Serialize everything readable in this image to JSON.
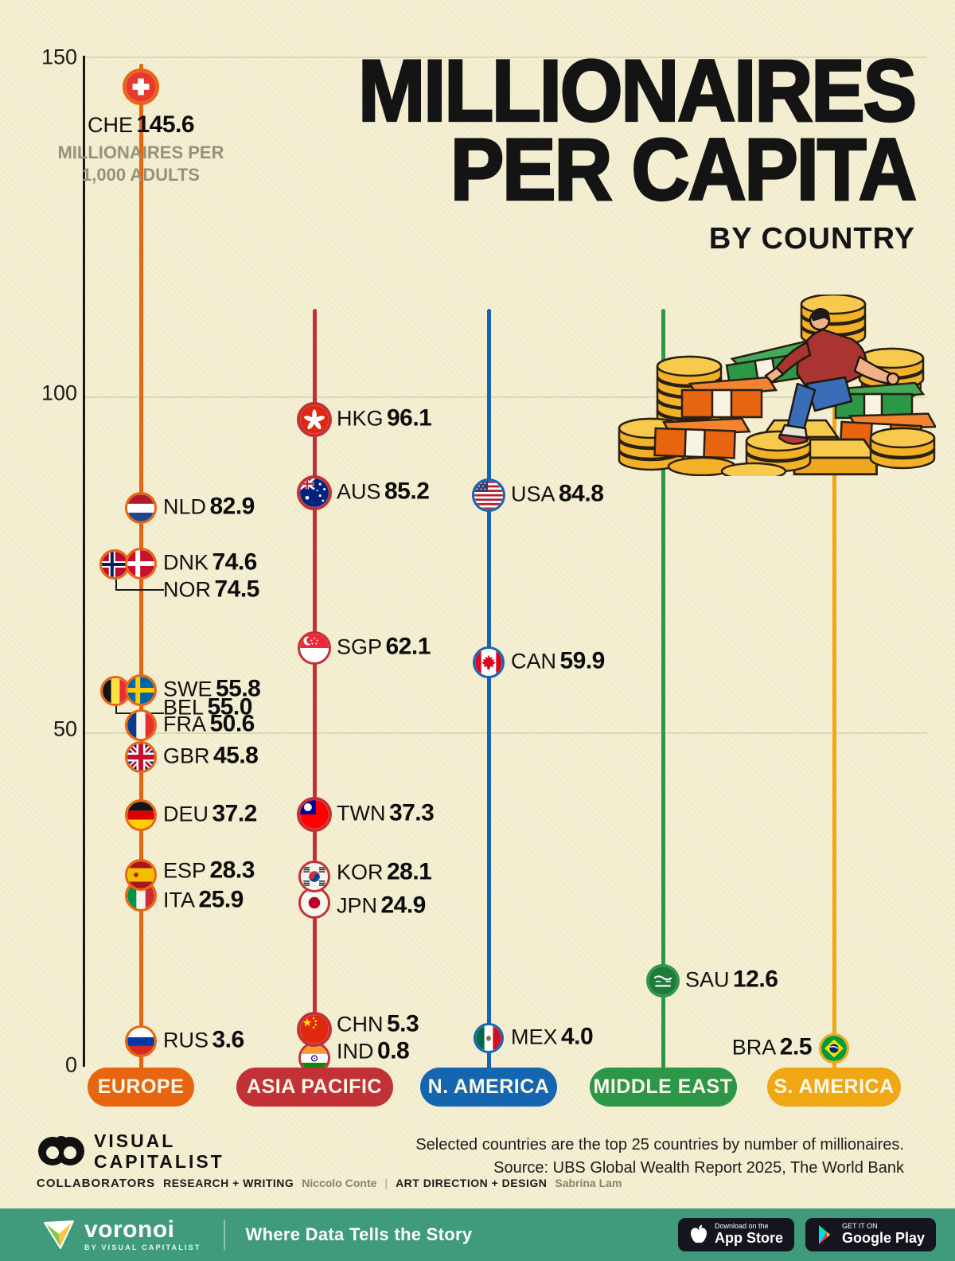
{
  "title": {
    "line1": "MILLIONAIRES",
    "line2": "PER CAPITA",
    "subtitle": "BY COUNTRY"
  },
  "chart_data": {
    "type": "lollipop",
    "title": "MILLIONAIRES PER CAPITA BY COUNTRY",
    "unit_label": "MILLIONAIRES PER 1,000 ADULTS",
    "ylim": [
      0,
      150
    ],
    "yticks": [
      "150",
      "100",
      "50",
      "0"
    ],
    "grid": "horizontal-faint",
    "series": [
      {
        "name": "EUROPE",
        "color": "#e8650f",
        "countries": [
          {
            "code": "CHE",
            "value": 145.6,
            "display": "145.6",
            "icon": "flag-che"
          },
          {
            "code": "NLD",
            "value": 82.9,
            "display": "82.9",
            "icon": "flag-nld"
          },
          {
            "code": "DNK",
            "value": 74.6,
            "display": "74.6",
            "icon": "flag-dnk"
          },
          {
            "code": "NOR",
            "value": 74.5,
            "display": "74.5",
            "icon": "flag-nor"
          },
          {
            "code": "SWE",
            "value": 55.8,
            "display": "55.8",
            "icon": "flag-swe"
          },
          {
            "code": "BEL",
            "value": 55.0,
            "display": "55.0",
            "icon": "flag-bel"
          },
          {
            "code": "FRA",
            "value": 50.6,
            "display": "50.6",
            "icon": "flag-fra"
          },
          {
            "code": "GBR",
            "value": 45.8,
            "display": "45.8",
            "icon": "flag-gbr"
          },
          {
            "code": "DEU",
            "value": 37.2,
            "display": "37.2",
            "icon": "flag-deu"
          },
          {
            "code": "ESP",
            "value": 28.3,
            "display": "28.3",
            "icon": "flag-esp"
          },
          {
            "code": "ITA",
            "value": 25.9,
            "display": "25.9",
            "icon": "flag-ita"
          },
          {
            "code": "RUS",
            "value": 3.6,
            "display": "3.6",
            "icon": "flag-rus"
          }
        ]
      },
      {
        "name": "ASIA PACIFIC",
        "color": "#c13136",
        "countries": [
          {
            "code": "HKG",
            "value": 96.1,
            "display": "96.1",
            "icon": "flag-hkg"
          },
          {
            "code": "AUS",
            "value": 85.2,
            "display": "85.2",
            "icon": "flag-aus"
          },
          {
            "code": "SGP",
            "value": 62.1,
            "display": "62.1",
            "icon": "flag-sgp"
          },
          {
            "code": "TWN",
            "value": 37.3,
            "display": "37.3",
            "icon": "flag-twn"
          },
          {
            "code": "KOR",
            "value": 28.1,
            "display": "28.1",
            "icon": "flag-kor"
          },
          {
            "code": "JPN",
            "value": 24.9,
            "display": "24.9",
            "icon": "flag-jpn"
          },
          {
            "code": "CHN",
            "value": 5.3,
            "display": "5.3",
            "icon": "flag-chn"
          },
          {
            "code": "IND",
            "value": 0.8,
            "display": "0.8",
            "icon": "flag-ind"
          }
        ]
      },
      {
        "name": "N. AMERICA",
        "color": "#1566b0",
        "countries": [
          {
            "code": "USA",
            "value": 84.8,
            "display": "84.8",
            "icon": "flag-usa"
          },
          {
            "code": "CAN",
            "value": 59.9,
            "display": "59.9",
            "icon": "flag-can"
          },
          {
            "code": "MEX",
            "value": 4.0,
            "display": "4.0",
            "icon": "flag-mex"
          }
        ]
      },
      {
        "name": "MIDDLE EAST",
        "color": "#2b9747",
        "countries": [
          {
            "code": "SAU",
            "value": 12.6,
            "display": "12.6",
            "icon": "flag-sau"
          }
        ]
      },
      {
        "name": "S. AMERICA",
        "color": "#f0a714",
        "countries": [
          {
            "code": "BRA",
            "value": 2.5,
            "display": "2.5",
            "icon": "flag-bra"
          }
        ]
      }
    ]
  },
  "footer": {
    "note_line1": "Selected countries are the top 25 countries by number of millionaires.",
    "note_line2": "Source: UBS Global Wealth Report 2025, The World Bank",
    "brand_line1": "VISUAL",
    "brand_line2": "CAPITALIST",
    "collaborators_label": "COLLABORATORS",
    "research_label": "RESEARCH + WRITING",
    "research_name": "Niccolo Conte",
    "separator": "|",
    "design_label": "ART DIRECTION + DESIGN",
    "design_name": "Sabrina Lam"
  },
  "bottom_bar": {
    "brand": "voronoi",
    "brand_sub": "BY VISUAL CAPITALIST",
    "tagline": "Where Data Tells the Story",
    "appstore_small": "Download on the",
    "appstore_big": "App Store",
    "gplay_small": "GET IT ON",
    "gplay_big": "Google Play",
    "bar_color": "#3f9b7b"
  }
}
